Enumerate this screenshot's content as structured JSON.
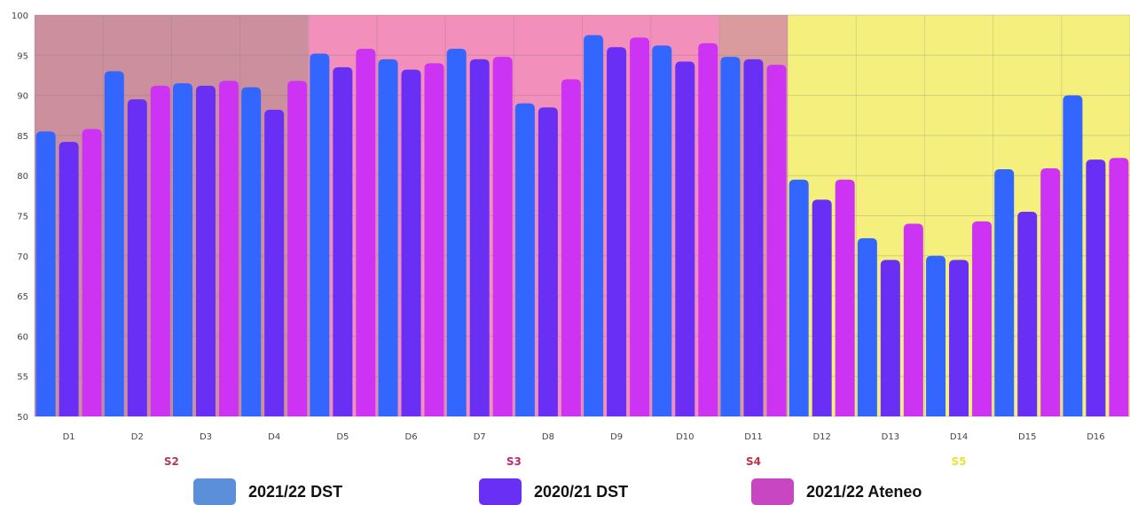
{
  "chart_data": {
    "type": "bar",
    "categories": [
      "D1",
      "D2",
      "D3",
      "D4",
      "D5",
      "D6",
      "D7",
      "D8",
      "D9",
      "D10",
      "D11",
      "D12",
      "D13",
      "D14",
      "D15",
      "D16"
    ],
    "ylim": [
      50,
      100
    ],
    "yticks": [
      50,
      55,
      60,
      65,
      70,
      75,
      80,
      85,
      90,
      95,
      100
    ],
    "grid": true,
    "legend_position": "bottom",
    "series": [
      {
        "name": "2021/22 DST",
        "color": "#3366ff",
        "values": [
          85.5,
          93,
          91.5,
          91,
          95.2,
          94.5,
          95.8,
          89,
          97.5,
          96.2,
          94.8,
          79.5,
          72.2,
          70,
          80.8,
          90
        ]
      },
      {
        "name": "2020/21 DST",
        "color": "#6a2ff5",
        "values": [
          84.2,
          89.5,
          91.2,
          88.2,
          93.5,
          93.2,
          94.5,
          88.5,
          96,
          94.2,
          94.5,
          77,
          69.5,
          69.5,
          75.5,
          82
        ]
      },
      {
        "name": "2021/22 Ateneo",
        "color": "#cc33f2",
        "values": [
          85.8,
          91.2,
          91.8,
          91.8,
          95.8,
          94,
          94.8,
          92,
          97.2,
          96.5,
          93.8,
          79.5,
          74,
          74.3,
          80.9,
          82.2
        ]
      }
    ],
    "sections": [
      {
        "label": "S2",
        "from": 0,
        "to": 3,
        "bg": "#cc8f9e",
        "label_color": "#b03a5a"
      },
      {
        "label": "S3",
        "from": 4,
        "to": 9,
        "bg": "#f28fbb",
        "label_color": "#c0286e"
      },
      {
        "label": "S4",
        "from": 10,
        "to": 10,
        "bg": "#d99b9e",
        "label_color": "#c0304a"
      },
      {
        "label": "S5",
        "from": 11,
        "to": 15,
        "bg": "#f5f07e",
        "label_color": "#f0e030"
      }
    ]
  }
}
